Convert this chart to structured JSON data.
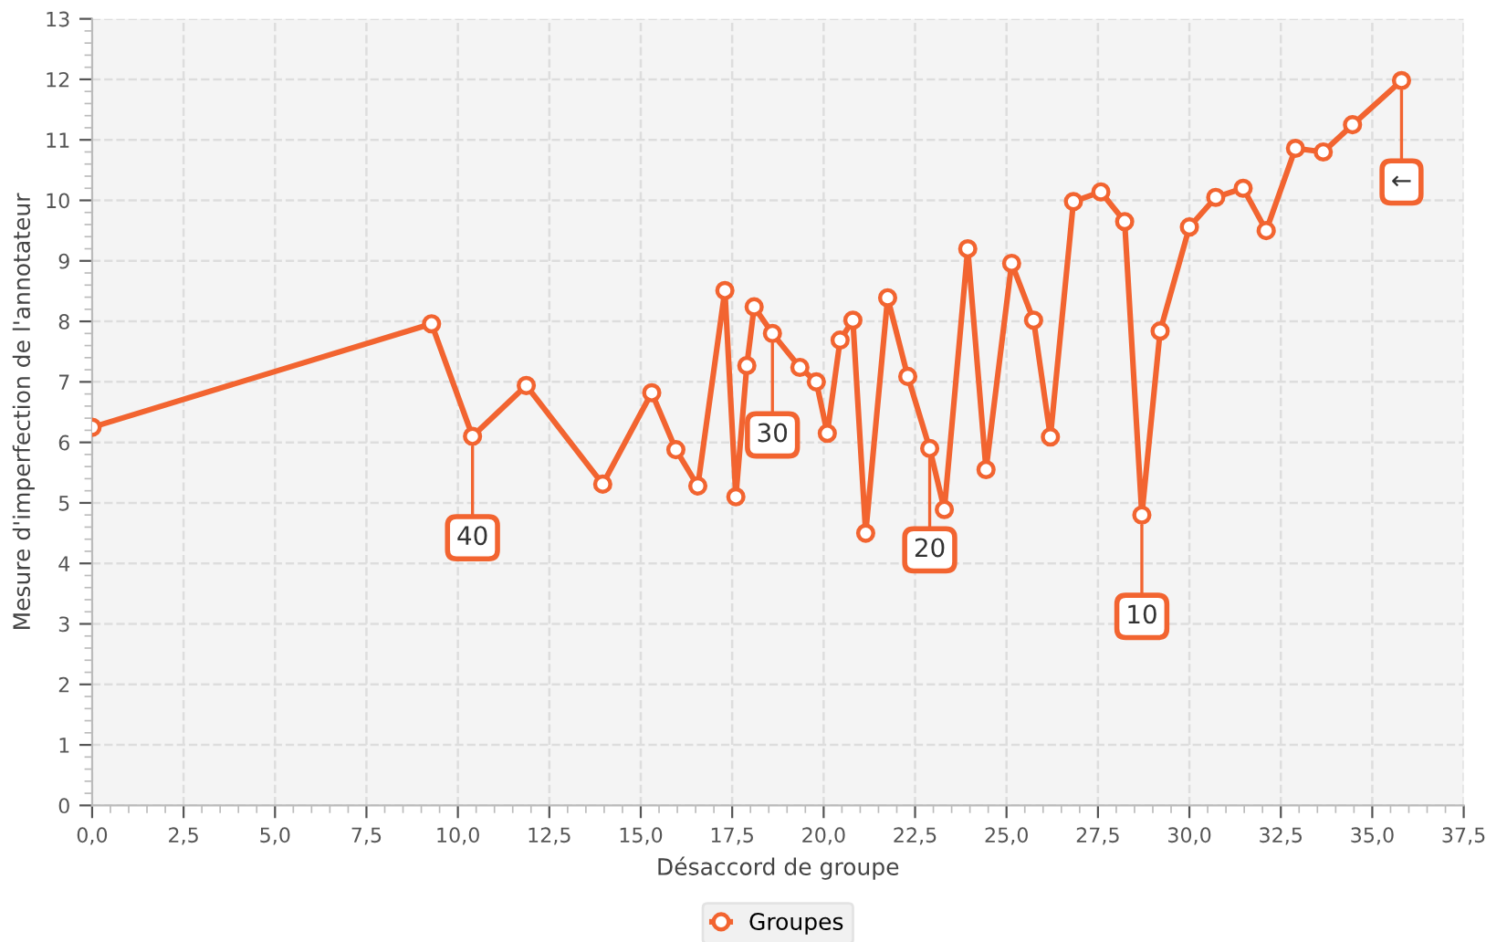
{
  "chart_data": {
    "type": "line",
    "xlabel": "Désaccord de groupe",
    "ylabel": "Mesure d'imperfection de l'annotateur",
    "series": [
      {
        "name": "Groupes",
        "color": "#f26430",
        "x": [
          0,
          9.28,
          10.4,
          11.87,
          13.96,
          15.3,
          15.96,
          16.56,
          17.3,
          17.6,
          17.9,
          18.1,
          18.6,
          19.35,
          19.8,
          20.1,
          20.45,
          20.8,
          21.15,
          21.75,
          22.3,
          22.9,
          23.3,
          23.94,
          24.44,
          25.14,
          25.74,
          26.2,
          26.83,
          27.58,
          28.23,
          28.7,
          29.2,
          30.0,
          30.72,
          31.47,
          32.1,
          32.9,
          33.66,
          34.46,
          35.8
        ],
        "values": [
          6.25,
          7.96,
          6.1,
          6.94,
          5.31,
          6.82,
          5.88,
          5.28,
          8.51,
          5.1,
          7.27,
          8.24,
          7.8,
          7.24,
          7.0,
          6.15,
          7.69,
          8.02,
          4.5,
          8.39,
          7.09,
          5.9,
          4.89,
          9.2,
          5.55,
          8.96,
          8.02,
          6.09,
          9.98,
          10.14,
          9.65,
          4.8,
          7.84,
          9.56,
          10.05,
          10.2,
          9.5,
          10.86,
          10.8,
          11.25,
          11.98
        ]
      }
    ],
    "annotations": [
      {
        "text": "40",
        "x": 10.4,
        "y": 6.1
      },
      {
        "text": "30",
        "x": 18.6,
        "y": 7.8
      },
      {
        "text": "20",
        "x": 22.9,
        "y": 5.9
      },
      {
        "text": "10",
        "x": 28.7,
        "y": 4.8
      },
      {
        "text": "←",
        "x": 35.8,
        "y": 11.98
      }
    ],
    "xlim": [
      0,
      37.5
    ],
    "ylim": [
      0,
      13
    ],
    "xticks": [
      {
        "value": 0,
        "label": "0,0"
      },
      {
        "value": 2.5,
        "label": "2,5"
      },
      {
        "value": 5,
        "label": "5,0"
      },
      {
        "value": 7.5,
        "label": "7,5"
      },
      {
        "value": 10,
        "label": "10,0"
      },
      {
        "value": 12.5,
        "label": "12,5"
      },
      {
        "value": 15,
        "label": "15,0"
      },
      {
        "value": 17.5,
        "label": "17,5"
      },
      {
        "value": 20,
        "label": "20,0"
      },
      {
        "value": 22.5,
        "label": "22,5"
      },
      {
        "value": 25,
        "label": "25,0"
      },
      {
        "value": 27.5,
        "label": "27,5"
      },
      {
        "value": 30,
        "label": "30,0"
      },
      {
        "value": 32.5,
        "label": "32,5"
      },
      {
        "value": 35,
        "label": "35,0"
      },
      {
        "value": 37.5,
        "label": "37,5"
      }
    ],
    "yticks": [
      0,
      1,
      2,
      3,
      4,
      5,
      6,
      7,
      8,
      9,
      10,
      11,
      12,
      13
    ],
    "grid": true,
    "legend": "bottom",
    "marker": "circle",
    "line_style": "solid"
  }
}
